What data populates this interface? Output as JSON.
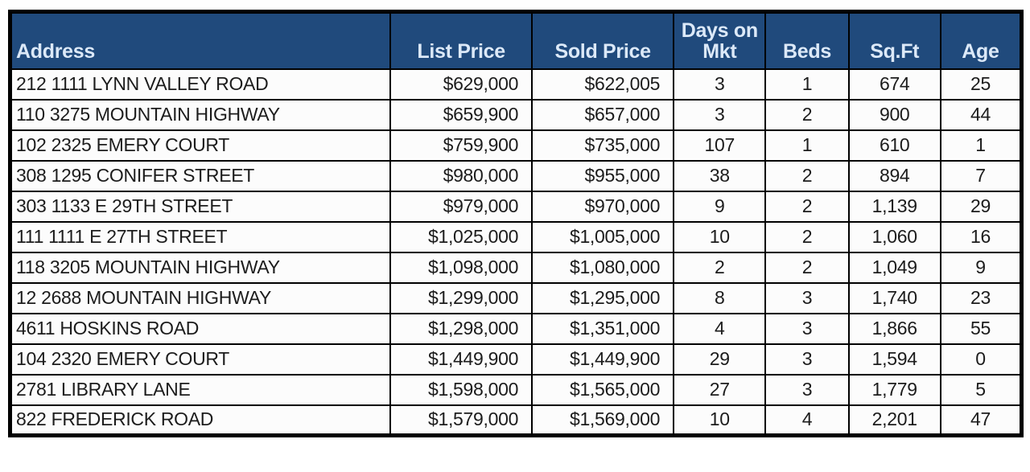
{
  "page": {
    "background": "#FFFFFF"
  },
  "table": {
    "title": "Sold listings table",
    "header_bg": "#204A7C",
    "header_text_color": "#DCE9F8",
    "row_bg": "#FCFCFC",
    "border_color": "#000000"
  },
  "chart_data": {
    "type": "table",
    "columns": [
      "Address",
      "List Price",
      "Sold Price",
      "Days on Mkt",
      "Beds",
      "Sq.Ft",
      "Age"
    ],
    "rows": [
      [
        "212 1111 LYNN VALLEY ROAD",
        "$629,000",
        "$622,005",
        "3",
        "1",
        "674",
        "25"
      ],
      [
        "110 3275 MOUNTAIN HIGHWAY",
        "$659,900",
        "$657,000",
        "3",
        "2",
        "900",
        "44"
      ],
      [
        "102 2325 EMERY COURT",
        "$759,900",
        "$735,000",
        "107",
        "1",
        "610",
        "1"
      ],
      [
        "308 1295 CONIFER STREET",
        "$980,000",
        "$955,000",
        "38",
        "2",
        "894",
        "7"
      ],
      [
        "303 1133 E 29TH STREET",
        "$979,000",
        "$970,000",
        "9",
        "2",
        "1,139",
        "29"
      ],
      [
        "111 1111 E 27TH STREET",
        "$1,025,000",
        "$1,005,000",
        "10",
        "2",
        "1,060",
        "16"
      ],
      [
        "118 3205 MOUNTAIN HIGHWAY",
        "$1,098,000",
        "$1,080,000",
        "2",
        "2",
        "1,049",
        "9"
      ],
      [
        "12 2688 MOUNTAIN HIGHWAY",
        "$1,299,000",
        "$1,295,000",
        "8",
        "3",
        "1,740",
        "23"
      ],
      [
        "4611 HOSKINS ROAD",
        "$1,298,000",
        "$1,351,000",
        "4",
        "3",
        "1,866",
        "55"
      ],
      [
        "104 2320 EMERY COURT",
        "$1,449,900",
        "$1,449,900",
        "29",
        "3",
        "1,594",
        "0"
      ],
      [
        "2781 LIBRARY LANE",
        "$1,598,000",
        "$1,565,000",
        "27",
        "3",
        "1,779",
        "5"
      ],
      [
        "822 FREDERICK ROAD",
        "$1,579,000",
        "$1,569,000",
        "10",
        "4",
        "2,201",
        "47"
      ]
    ]
  }
}
